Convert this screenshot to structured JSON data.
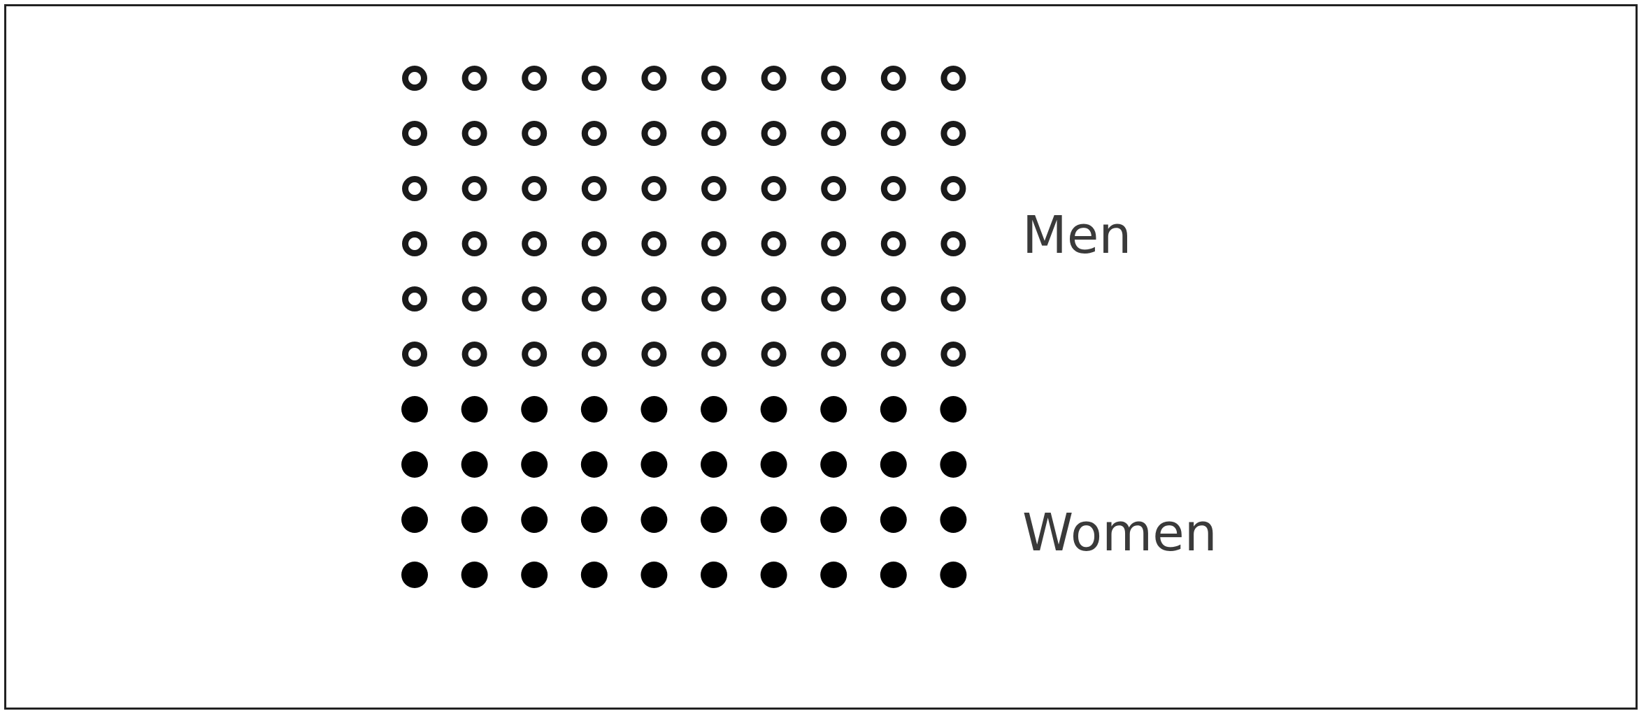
{
  "chart_data": {
    "type": "waffle",
    "series": [
      {
        "name": "Men",
        "count": 60,
        "style": "hollow",
        "color": "#1a1a1a"
      },
      {
        "name": "Women",
        "count": 40,
        "style": "filled",
        "color": "#000000"
      }
    ],
    "grid": {
      "rows": 10,
      "cols": 10
    },
    "legend_position": "right"
  }
}
